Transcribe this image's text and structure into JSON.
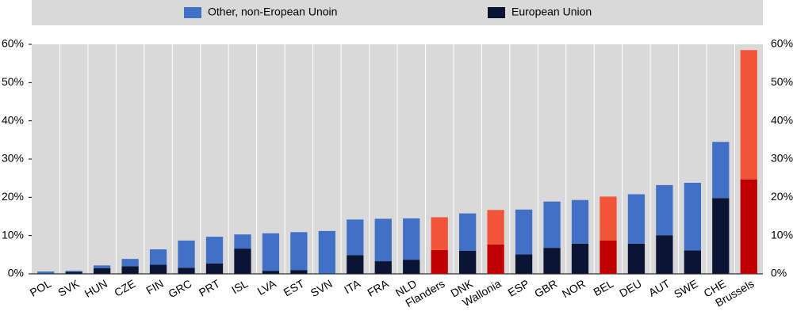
{
  "chart_data": {
    "type": "stacked-bar",
    "categories": [
      "POL",
      "SVK",
      "HUN",
      "CZE",
      "FIN",
      "GRC",
      "PRT",
      "ISL",
      "LVA",
      "EST",
      "SVN",
      "ITA",
      "FRA",
      "NLD",
      "Flanders",
      "DNK",
      "Wallonia",
      "ESP",
      "GBR",
      "NOR",
      "BEL",
      "DEU",
      "AUT",
      "SWE",
      "CHE",
      "Brussels"
    ],
    "series": [
      {
        "name": "European Union",
        "color": "#0b1533",
        "values": [
          0.1,
          0.5,
          1.5,
          2.0,
          2.4,
          1.6,
          2.7,
          6.6,
          0.8,
          1.0,
          0.1,
          4.9,
          3.3,
          3.7,
          6.2,
          6.0,
          7.7,
          5.1,
          6.8,
          7.9,
          8.7,
          7.9,
          10.1,
          6.1,
          19.8,
          24.7
        ],
        "colors": [
          "#0b1533",
          "#0b1533",
          "#0b1533",
          "#0b1533",
          "#0b1533",
          "#0b1533",
          "#0b1533",
          "#0b1533",
          "#0b1533",
          "#0b1533",
          "#0b1533",
          "#0b1533",
          "#0b1533",
          "#0b1533",
          "#c00000",
          "#0b1533",
          "#c00000",
          "#0b1533",
          "#0b1533",
          "#0b1533",
          "#c00000",
          "#0b1533",
          "#0b1533",
          "#0b1533",
          "#0b1533",
          "#c00000"
        ]
      },
      {
        "name": "Other, non-Eropean Unoin",
        "color": "#4270c4",
        "values": [
          0.5,
          0.3,
          0.7,
          1.9,
          4.0,
          7.1,
          7.0,
          3.7,
          9.8,
          9.9,
          11.1,
          9.3,
          11.1,
          10.8,
          8.6,
          9.8,
          9.0,
          11.7,
          12.1,
          11.4,
          11.5,
          12.9,
          13.1,
          17.7,
          14.7,
          33.8
        ],
        "colors": [
          "#4270c4",
          "#4270c4",
          "#4270c4",
          "#4270c4",
          "#4270c4",
          "#4270c4",
          "#4270c4",
          "#4270c4",
          "#4270c4",
          "#4270c4",
          "#4270c4",
          "#4270c4",
          "#4270c4",
          "#4270c4",
          "#f0553a",
          "#4270c4",
          "#f0553a",
          "#4270c4",
          "#4270c4",
          "#4270c4",
          "#f0553a",
          "#4270c4",
          "#4270c4",
          "#4270c4",
          "#4270c4",
          "#f0553a"
        ]
      }
    ],
    "ylim": [
      0,
      60
    ],
    "yticks": [
      {
        "value": 0,
        "label": "0%"
      },
      {
        "value": 10,
        "label": "10%"
      },
      {
        "value": 20,
        "label": "20%"
      },
      {
        "value": 30,
        "label": "30%"
      },
      {
        "value": 40,
        "label": "40%"
      },
      {
        "value": 50,
        "label": "50%"
      },
      {
        "value": 60,
        "label": "60%"
      }
    ]
  }
}
